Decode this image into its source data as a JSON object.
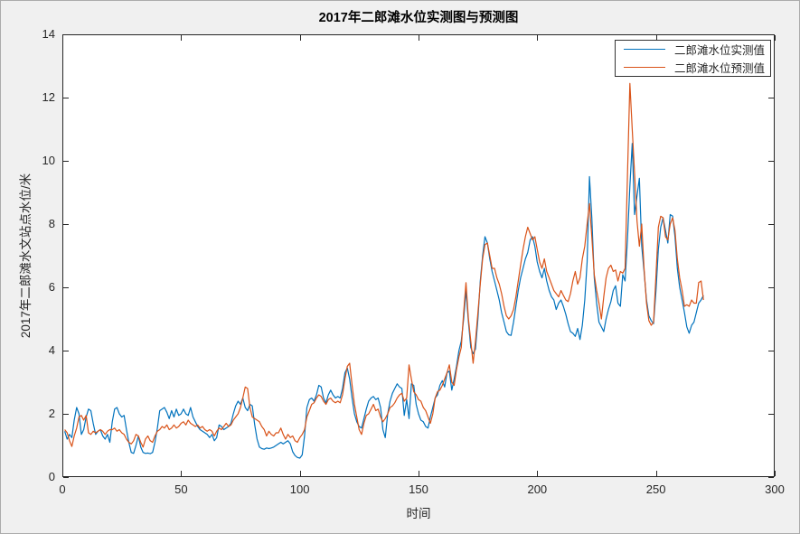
{
  "figure": {
    "background_color": "#f0f0f0",
    "plot_background_color": "#ffffff",
    "axis_color": "#262626"
  },
  "chart_data": {
    "type": "line",
    "title": "2017年二郎滩水位实测图与预测图",
    "xlabel": "时间",
    "ylabel": "2017年二郎滩水文站点水位/米",
    "xlim": [
      0,
      300
    ],
    "ylim": [
      0,
      14
    ],
    "xticks": [
      0,
      50,
      100,
      150,
      200,
      250,
      300
    ],
    "yticks": [
      0,
      2,
      4,
      6,
      8,
      10,
      12,
      14
    ],
    "grid": false,
    "legend_position": "northeast",
    "x_start": 1,
    "x_step": 1,
    "series": [
      {
        "name": "二郎滩水位实测值",
        "color": "#0072BD",
        "values": [
          1.45,
          1.2,
          1.35,
          1.25,
          1.8,
          2.2,
          2.0,
          1.35,
          1.5,
          1.9,
          2.15,
          2.1,
          1.7,
          1.35,
          1.45,
          1.5,
          1.3,
          1.2,
          1.35,
          1.1,
          1.75,
          2.15,
          2.2,
          2.0,
          1.9,
          1.95,
          1.5,
          1.1,
          0.78,
          0.75,
          1.0,
          1.3,
          0.95,
          0.78,
          0.75,
          0.76,
          0.74,
          0.78,
          1.1,
          1.55,
          2.1,
          2.15,
          2.2,
          2.05,
          1.85,
          2.1,
          1.9,
          2.15,
          1.95,
          2.0,
          2.15,
          2.0,
          1.95,
          2.2,
          1.9,
          1.75,
          1.6,
          1.5,
          1.45,
          1.4,
          1.35,
          1.25,
          1.35,
          1.15,
          1.25,
          1.65,
          1.6,
          1.5,
          1.55,
          1.6,
          1.7,
          2.0,
          2.25,
          2.4,
          2.3,
          2.5,
          2.2,
          2.1,
          2.3,
          2.25,
          1.65,
          1.2,
          0.95,
          0.9,
          0.88,
          0.92,
          0.9,
          0.92,
          0.95,
          1.0,
          1.05,
          1.1,
          1.05,
          1.1,
          1.15,
          1.05,
          0.8,
          0.68,
          0.62,
          0.6,
          0.7,
          1.3,
          2.2,
          2.45,
          2.5,
          2.4,
          2.6,
          2.9,
          2.85,
          2.5,
          2.35,
          2.6,
          2.75,
          2.6,
          2.5,
          2.55,
          2.5,
          2.8,
          3.3,
          3.45,
          3.1,
          2.5,
          2.0,
          1.75,
          1.6,
          1.55,
          1.85,
          2.15,
          2.4,
          2.5,
          2.55,
          2.45,
          2.5,
          2.2,
          1.5,
          1.25,
          2.0,
          2.4,
          2.65,
          2.8,
          2.95,
          2.85,
          2.8,
          1.95,
          2.45,
          1.85,
          2.95,
          2.9,
          2.3,
          2.0,
          1.8,
          1.75,
          1.6,
          1.55,
          1.9,
          2.2,
          2.5,
          2.6,
          2.9,
          3.05,
          2.85,
          3.3,
          3.35,
          2.75,
          3.1,
          3.5,
          4.0,
          4.3,
          5.0,
          5.9,
          4.9,
          4.1,
          3.9,
          4.05,
          5.0,
          6.2,
          7.0,
          7.6,
          7.4,
          6.9,
          6.5,
          6.2,
          5.9,
          5.6,
          5.2,
          4.9,
          4.6,
          4.5,
          4.48,
          4.9,
          5.4,
          5.9,
          6.3,
          6.6,
          6.9,
          7.1,
          7.5,
          7.6,
          7.3,
          6.8,
          6.5,
          6.3,
          6.6,
          6.2,
          5.9,
          5.7,
          5.6,
          5.3,
          5.5,
          5.6,
          5.4,
          5.15,
          4.85,
          4.6,
          4.55,
          4.45,
          4.7,
          4.35,
          4.8,
          5.6,
          6.8,
          9.5,
          8.2,
          6.3,
          5.5,
          4.9,
          4.75,
          4.6,
          5.0,
          5.3,
          5.55,
          5.9,
          6.05,
          5.5,
          5.4,
          6.4,
          6.2,
          7.5,
          9.2,
          10.55,
          8.3,
          8.9,
          9.45,
          7.3,
          6.5,
          5.6,
          5.1,
          4.95,
          4.85,
          5.9,
          7.2,
          7.9,
          8.2,
          7.8,
          7.4,
          8.3,
          8.25,
          7.6,
          6.6,
          6.0,
          5.6,
          5.2,
          4.75,
          4.55,
          4.8,
          4.9,
          5.2,
          5.5,
          5.6,
          5.75
        ]
      },
      {
        "name": "二郎滩水位预测值",
        "color": "#D95319",
        "values": [
          1.5,
          1.4,
          1.15,
          0.97,
          1.3,
          1.55,
          1.9,
          1.95,
          1.8,
          1.95,
          1.4,
          1.35,
          1.45,
          1.4,
          1.45,
          1.5,
          1.45,
          1.35,
          1.45,
          1.5,
          1.5,
          1.55,
          1.45,
          1.5,
          1.4,
          1.35,
          1.2,
          1.1,
          1.05,
          1.15,
          1.35,
          1.3,
          1.1,
          0.95,
          1.2,
          1.3,
          1.15,
          1.1,
          1.3,
          1.45,
          1.5,
          1.6,
          1.55,
          1.65,
          1.5,
          1.55,
          1.65,
          1.55,
          1.6,
          1.7,
          1.75,
          1.65,
          1.8,
          1.7,
          1.65,
          1.6,
          1.65,
          1.55,
          1.6,
          1.5,
          1.45,
          1.5,
          1.45,
          1.3,
          1.45,
          1.55,
          1.5,
          1.6,
          1.7,
          1.6,
          1.65,
          1.8,
          1.9,
          2.0,
          2.2,
          2.5,
          2.85,
          2.8,
          2.2,
          1.9,
          1.85,
          1.8,
          1.75,
          1.6,
          1.5,
          1.3,
          1.45,
          1.35,
          1.3,
          1.4,
          1.4,
          1.55,
          1.35,
          1.2,
          1.35,
          1.25,
          1.3,
          1.15,
          1.1,
          1.25,
          1.35,
          1.5,
          1.9,
          2.1,
          2.3,
          2.35,
          2.5,
          2.6,
          2.55,
          2.4,
          2.3,
          2.45,
          2.5,
          2.4,
          2.35,
          2.4,
          2.35,
          2.6,
          3.1,
          3.5,
          3.6,
          2.9,
          2.3,
          1.9,
          1.5,
          1.35,
          1.7,
          1.95,
          2.0,
          2.15,
          2.3,
          2.1,
          2.15,
          1.9,
          1.75,
          1.85,
          2.0,
          2.2,
          2.25,
          2.35,
          2.5,
          2.6,
          2.65,
          2.4,
          2.5,
          3.55,
          3.1,
          2.7,
          2.6,
          2.45,
          2.4,
          2.2,
          2.1,
          1.9,
          1.7,
          2.0,
          2.5,
          2.7,
          2.75,
          2.9,
          3.1,
          3.3,
          3.55,
          3.0,
          2.9,
          3.4,
          3.8,
          4.1,
          5.2,
          6.15,
          5.0,
          4.3,
          3.6,
          4.3,
          5.2,
          6.1,
          6.9,
          7.35,
          7.4,
          7.0,
          6.6,
          6.6,
          6.3,
          6.1,
          5.8,
          5.4,
          5.1,
          5.0,
          5.1,
          5.3,
          5.7,
          6.2,
          6.7,
          7.2,
          7.6,
          7.9,
          7.7,
          7.5,
          7.6,
          7.2,
          6.8,
          6.6,
          6.9,
          6.5,
          6.3,
          6.1,
          5.9,
          5.8,
          5.7,
          5.9,
          5.75,
          5.6,
          5.55,
          5.8,
          6.2,
          6.5,
          6.1,
          6.3,
          6.9,
          7.3,
          8.0,
          8.65,
          7.6,
          6.4,
          5.9,
          5.5,
          5.0,
          5.7,
          6.3,
          6.6,
          6.7,
          6.5,
          6.55,
          6.2,
          6.5,
          6.45,
          6.6,
          9.5,
          12.45,
          11.0,
          9.6,
          8.1,
          7.3,
          8.0,
          6.6,
          5.5,
          4.95,
          4.8,
          4.9,
          6.4,
          7.9,
          8.25,
          8.2,
          7.6,
          7.5,
          8.0,
          8.2,
          7.8,
          6.9,
          6.3,
          5.9,
          5.4,
          5.45,
          5.4,
          5.6,
          5.5,
          5.5,
          6.15,
          6.2,
          5.6
        ]
      }
    ]
  },
  "legend": {
    "items": [
      {
        "label": "二郎滩水位实测值"
      },
      {
        "label": "二郎滩水位预测值"
      }
    ]
  }
}
